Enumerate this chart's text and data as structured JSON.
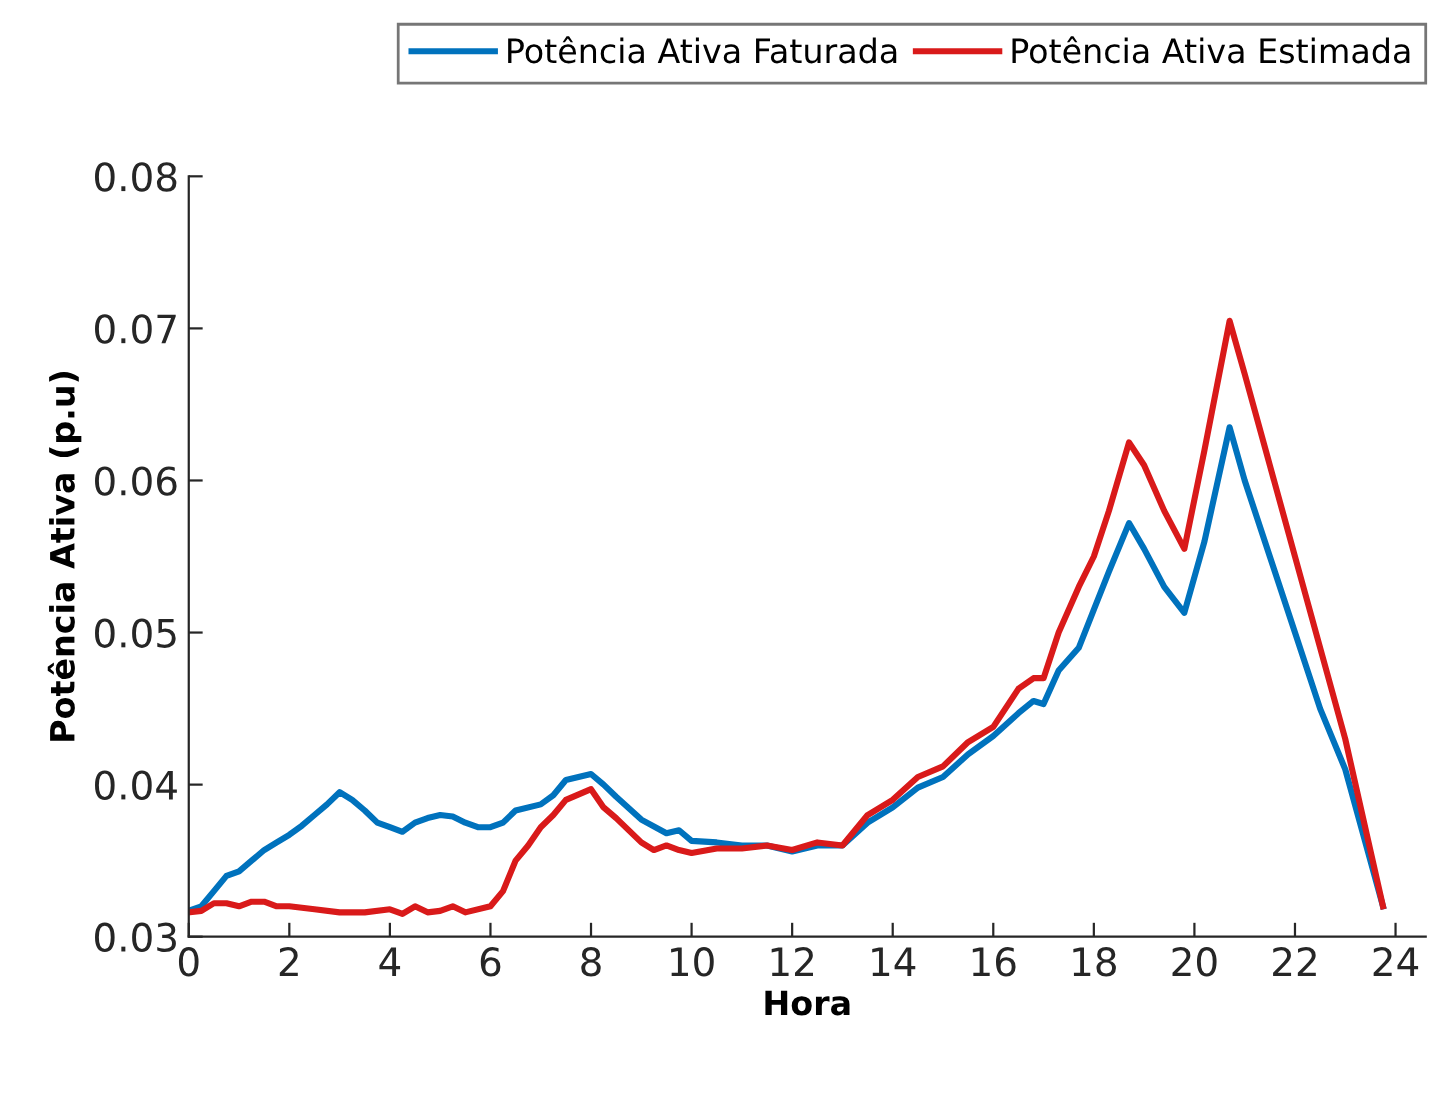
{
  "chart_data": {
    "type": "line",
    "xlabel": "Hora",
    "ylabel": "Potência Ativa (p.u)",
    "xlim": [
      0,
      24.6
    ],
    "ylim": [
      0.03,
      0.08
    ],
    "xticks": [
      0,
      2,
      4,
      6,
      8,
      10,
      12,
      14,
      16,
      18,
      20,
      22,
      24
    ],
    "yticks": [
      0.03,
      0.04,
      0.05,
      0.06,
      0.07,
      0.08
    ],
    "grid": false,
    "legend": "top",
    "line_style": "solid",
    "marker": "none",
    "series": [
      {
        "name": "Potência Ativa Faturada",
        "color": "#0072bd",
        "x": [
          0,
          0.25,
          0.5,
          0.75,
          1,
          1.25,
          1.5,
          1.75,
          2,
          2.25,
          2.5,
          2.75,
          3,
          3.25,
          3.5,
          3.75,
          4,
          4.25,
          4.5,
          4.75,
          5,
          5.25,
          5.5,
          5.75,
          6,
          6.25,
          6.5,
          7,
          7.25,
          7.5,
          8,
          8.25,
          8.5,
          9,
          9.5,
          9.75,
          10,
          10.5,
          11,
          11.5,
          12,
          12.5,
          13,
          13.5,
          14,
          14.5,
          15,
          15.5,
          16,
          16.5,
          16.8,
          17,
          17.3,
          17.7,
          18,
          18.3,
          18.7,
          19,
          19.4,
          19.8,
          20.2,
          20.7,
          21,
          21.5,
          22,
          22.5,
          23,
          23.75
        ],
        "values": [
          0.0317,
          0.032,
          0.033,
          0.034,
          0.0343,
          0.035,
          0.0357,
          0.0362,
          0.0367,
          0.0373,
          0.038,
          0.0387,
          0.0395,
          0.039,
          0.0383,
          0.0375,
          0.0372,
          0.0369,
          0.0375,
          0.0378,
          0.038,
          0.0379,
          0.0375,
          0.0372,
          0.0372,
          0.0375,
          0.0383,
          0.0387,
          0.0393,
          0.0403,
          0.0407,
          0.04,
          0.0392,
          0.0377,
          0.0368,
          0.037,
          0.0363,
          0.0362,
          0.036,
          0.036,
          0.0356,
          0.036,
          0.036,
          0.0375,
          0.0385,
          0.0398,
          0.0405,
          0.042,
          0.0432,
          0.0447,
          0.0455,
          0.0453,
          0.0475,
          0.049,
          0.0515,
          0.054,
          0.0572,
          0.0555,
          0.053,
          0.0513,
          0.056,
          0.0635,
          0.06,
          0.055,
          0.05,
          0.045,
          0.041,
          0.032
        ]
      },
      {
        "name": "Potência Ativa Estimada",
        "color": "#d91a1a",
        "x": [
          0,
          0.25,
          0.5,
          0.75,
          1,
          1.25,
          1.5,
          1.75,
          2,
          2.5,
          3,
          3.5,
          4,
          4.25,
          4.5,
          4.75,
          5,
          5.25,
          5.5,
          6,
          6.25,
          6.5,
          6.75,
          7,
          7.25,
          7.5,
          8,
          8.25,
          8.5,
          9,
          9.25,
          9.5,
          9.75,
          10,
          10.5,
          11,
          11.5,
          12,
          12.5,
          13,
          13.5,
          14,
          14.5,
          15,
          15.5,
          16,
          16.5,
          16.8,
          17,
          17.3,
          17.7,
          18,
          18.3,
          18.7,
          19,
          19.4,
          19.8,
          20.2,
          20.7,
          21,
          21.5,
          22,
          22.5,
          23,
          23.75
        ],
        "values": [
          0.0316,
          0.0317,
          0.0322,
          0.0322,
          0.032,
          0.0323,
          0.0323,
          0.032,
          0.032,
          0.0318,
          0.0316,
          0.0316,
          0.0318,
          0.0315,
          0.032,
          0.0316,
          0.0317,
          0.032,
          0.0316,
          0.032,
          0.033,
          0.035,
          0.036,
          0.0372,
          0.038,
          0.039,
          0.0397,
          0.0385,
          0.0378,
          0.0362,
          0.0357,
          0.036,
          0.0357,
          0.0355,
          0.0358,
          0.0358,
          0.036,
          0.0357,
          0.0362,
          0.036,
          0.038,
          0.039,
          0.0405,
          0.0412,
          0.0428,
          0.0438,
          0.0463,
          0.047,
          0.047,
          0.05,
          0.053,
          0.055,
          0.058,
          0.0625,
          0.061,
          0.058,
          0.0555,
          0.062,
          0.0705,
          0.067,
          0.061,
          0.055,
          0.049,
          0.043,
          0.032
        ]
      }
    ]
  }
}
